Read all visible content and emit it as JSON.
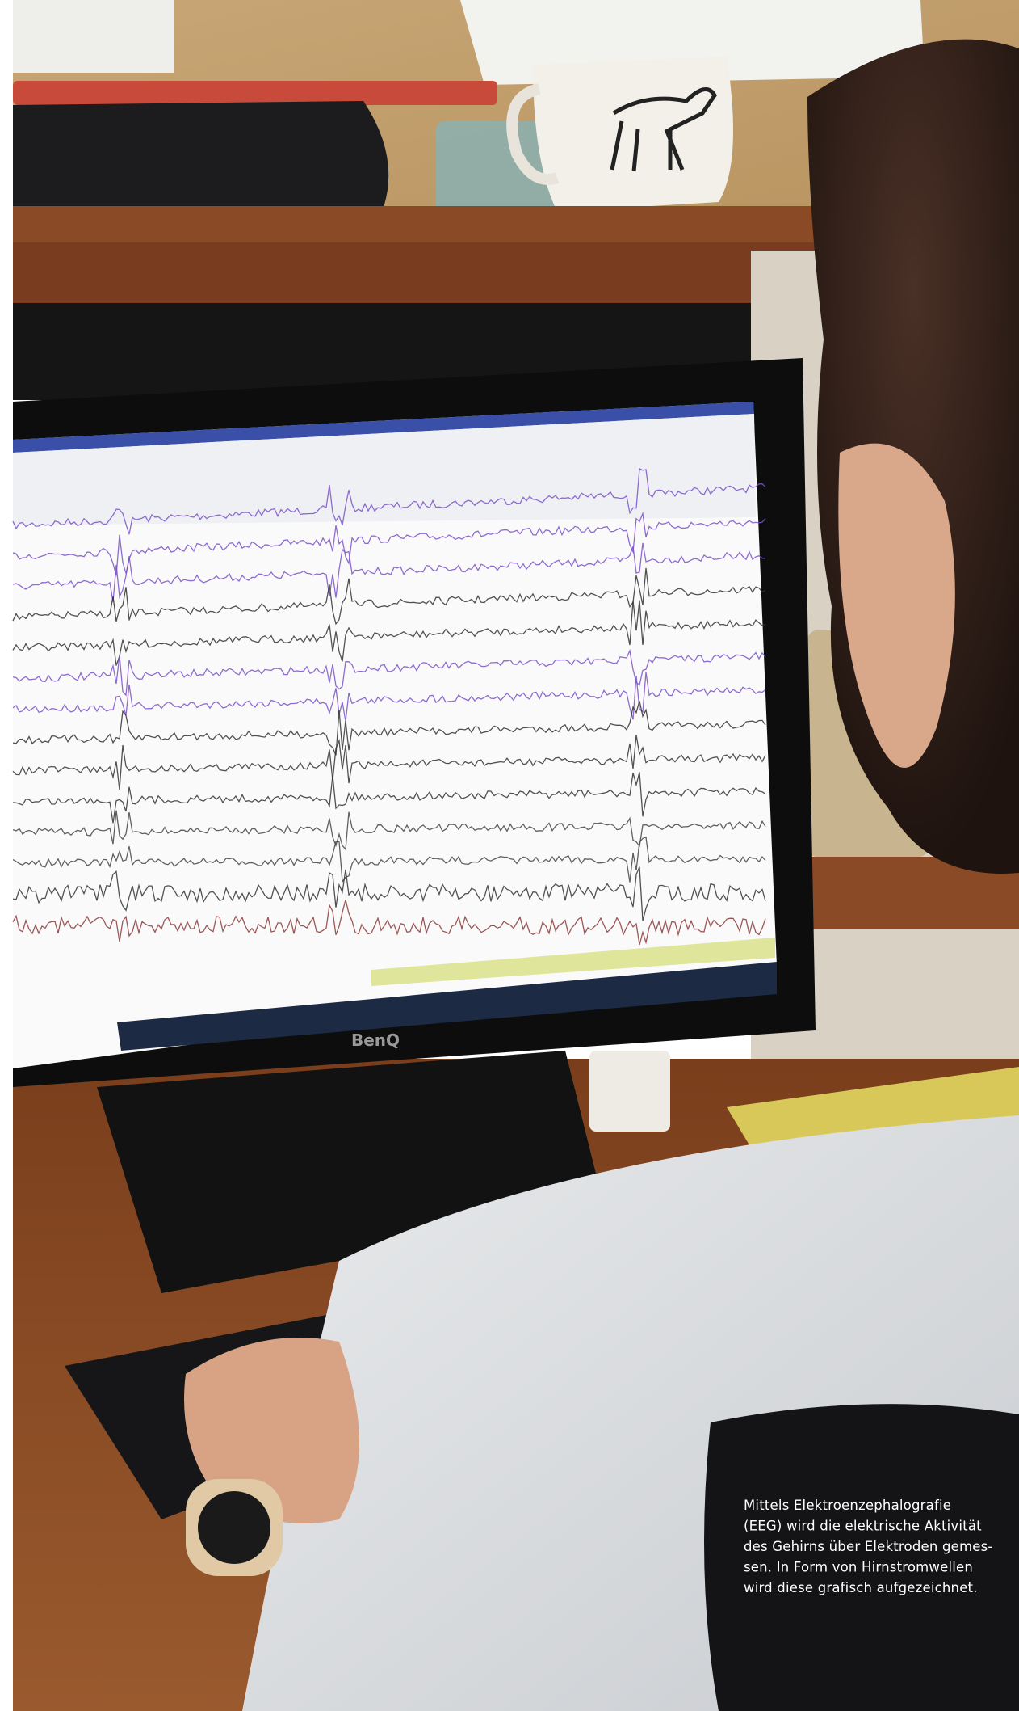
{
  "monitor_brand": "BenQ",
  "caption": {
    "lines": [
      "Mittels Elektroenzephalografie",
      "(EEG) wird die elektrische Aktivität",
      "des Gehirns über Elektroden gemes-",
      "sen. In Form von Hirnstromwellen",
      "wird diese grafisch aufgezeichnet."
    ]
  }
}
